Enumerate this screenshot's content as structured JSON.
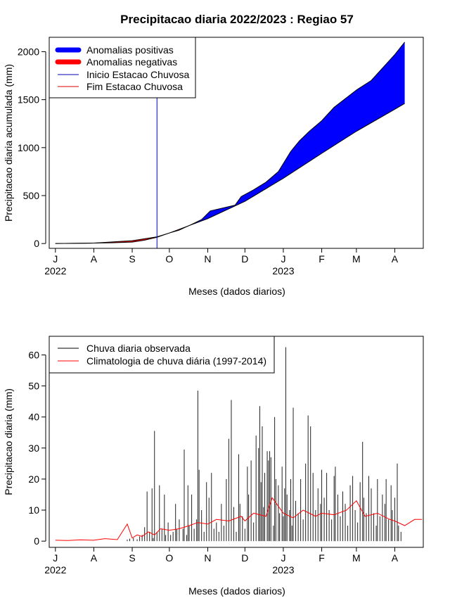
{
  "title": "Precipitacao diaria 2022/2023 : Regiao 57",
  "top_chart": {
    "ylabel": "Precipitacao diaria acumulada (mm)",
    "xlabel": "Meses (dados diarios)",
    "y_ticks": [
      "0",
      "500",
      "1000",
      "1500",
      "2000"
    ],
    "legend": [
      {
        "label": "Anomalias positivas",
        "color": "#0000ff"
      },
      {
        "label": "Anomalias negativas",
        "color": "#ff0000"
      },
      {
        "label": "Inicio Estacao Chuvosa",
        "color": "#0000bb"
      },
      {
        "label": "Fim Estacao Chuvosa",
        "color": "#dd0000"
      }
    ]
  },
  "bottom_chart": {
    "ylabel": "Precipitacao diaria (mm)",
    "xlabel": "Meses (dados diarios)",
    "y_ticks": [
      "0",
      "10",
      "20",
      "30",
      "40",
      "50",
      "60"
    ],
    "legend": [
      {
        "label": "Chuva diaria observada",
        "color": "#000000"
      },
      {
        "label": "Climatologia de chuva diária (1997-2014)",
        "color": "#ff0000"
      }
    ]
  },
  "x_months": [
    "J",
    "A",
    "S",
    "O",
    "N",
    "D",
    "J",
    "F",
    "M",
    "A"
  ],
  "x_years": [
    "2022",
    "2023"
  ],
  "chart_data": [
    {
      "type": "area",
      "title": "Precipitacao diaria 2022/2023 : Regiao 57",
      "xlabel": "Meses (dados diarios)",
      "ylabel": "Precipitacao diaria acumulada (mm)",
      "x_unit": "days since 2022-07-01",
      "xlim": [
        -5,
        297
      ],
      "ylim": [
        -50,
        2150
      ],
      "rainy_season_start_day": 82,
      "climatology_cumulative": {
        "day": [
          0,
          31,
          62,
          82,
          92,
          123,
          153,
          184,
          215,
          243,
          274,
          282
        ],
        "value": [
          0,
          5,
          30,
          70,
          110,
          260,
          440,
          680,
          940,
          1170,
          1400,
          1460
        ]
      },
      "observed_cumulative": {
        "day": [
          0,
          31,
          45,
          62,
          72,
          82,
          92,
          100,
          110,
          118,
          125,
          135,
          145,
          150,
          160,
          170,
          180,
          190,
          197,
          205,
          215,
          225,
          243,
          255,
          274,
          282
        ],
        "value": [
          0,
          5,
          8,
          15,
          35,
          65,
          110,
          140,
          200,
          250,
          340,
          370,
          400,
          490,
          560,
          640,
          750,
          960,
          1070,
          1170,
          1280,
          1420,
          1600,
          1700,
          1970,
          2100
        ]
      }
    },
    {
      "type": "bar",
      "xlabel": "Meses (dados diarios)",
      "ylabel": "Precipitacao diaria (mm)",
      "x_unit": "days since 2022-07-01",
      "xlim": [
        -5,
        297
      ],
      "ylim": [
        -2,
        66
      ],
      "observed_daily": [
        [
          58,
          0.5
        ],
        [
          60,
          0.8
        ],
        [
          63,
          1.0
        ],
        [
          66,
          0.6
        ],
        [
          68,
          1.5
        ],
        [
          70,
          2.0
        ],
        [
          72,
          4.5
        ],
        [
          74,
          16
        ],
        [
          76,
          3
        ],
        [
          78,
          17
        ],
        [
          79,
          1
        ],
        [
          80,
          35.5
        ],
        [
          82,
          3
        ],
        [
          84,
          18
        ],
        [
          86,
          4
        ],
        [
          88,
          15
        ],
        [
          89,
          2
        ],
        [
          91,
          6
        ],
        [
          93,
          2
        ],
        [
          95,
          3
        ],
        [
          97,
          12
        ],
        [
          98,
          4
        ],
        [
          100,
          7
        ],
        [
          103,
          4
        ],
        [
          104,
          29.5
        ],
        [
          106,
          2
        ],
        [
          107,
          18
        ],
        [
          108,
          5
        ],
        [
          110,
          15
        ],
        [
          112,
          4
        ],
        [
          114,
          7
        ],
        [
          115,
          48.5
        ],
        [
          116,
          23
        ],
        [
          118,
          10
        ],
        [
          120,
          3
        ],
        [
          122,
          19
        ],
        [
          124,
          14
        ],
        [
          126,
          22
        ],
        [
          128,
          4
        ],
        [
          130,
          6
        ],
        [
          132,
          3
        ],
        [
          134,
          12
        ],
        [
          136,
          5
        ],
        [
          138,
          20
        ],
        [
          140,
          33
        ],
        [
          142,
          45.5
        ],
        [
          144,
          11
        ],
        [
          146,
          3
        ],
        [
          148,
          28
        ],
        [
          149,
          12
        ],
        [
          151,
          8
        ],
        [
          153,
          4
        ],
        [
          155,
          24
        ],
        [
          156,
          15
        ],
        [
          158,
          26
        ],
        [
          160,
          6
        ],
        [
          162,
          34
        ],
        [
          164,
          30
        ],
        [
          165,
          43.5
        ],
        [
          166,
          19
        ],
        [
          167,
          37
        ],
        [
          168,
          11
        ],
        [
          169,
          22
        ],
        [
          171,
          29
        ],
        [
          172,
          26
        ],
        [
          173,
          29
        ],
        [
          174,
          27
        ],
        [
          176,
          5
        ],
        [
          177,
          40
        ],
        [
          178,
          20
        ],
        [
          180,
          18
        ],
        [
          181,
          9
        ],
        [
          183,
          24
        ],
        [
          184,
          8
        ],
        [
          185,
          17
        ],
        [
          186,
          62.5
        ],
        [
          187,
          15
        ],
        [
          189,
          10
        ],
        [
          190,
          20
        ],
        [
          191,
          5
        ],
        [
          192,
          43
        ],
        [
          194,
          13
        ],
        [
          196,
          9
        ],
        [
          198,
          20
        ],
        [
          200,
          7
        ],
        [
          202,
          25
        ],
        [
          204,
          40.5
        ],
        [
          206,
          37
        ],
        [
          208,
          22
        ],
        [
          210,
          10
        ],
        [
          212,
          17
        ],
        [
          214,
          12
        ],
        [
          215,
          23
        ],
        [
          217,
          14
        ],
        [
          219,
          22
        ],
        [
          221,
          10
        ],
        [
          223,
          7
        ],
        [
          225,
          21
        ],
        [
          226,
          24
        ],
        [
          228,
          15
        ],
        [
          230,
          8
        ],
        [
          232,
          16
        ],
        [
          234,
          12
        ],
        [
          236,
          5
        ],
        [
          238,
          18
        ],
        [
          240,
          21
        ],
        [
          242,
          10
        ],
        [
          244,
          6
        ],
        [
          246,
          19
        ],
        [
          248,
          32
        ],
        [
          249,
          14
        ],
        [
          251,
          9
        ],
        [
          253,
          21
        ],
        [
          255,
          17
        ],
        [
          257,
          9
        ],
        [
          259,
          5
        ],
        [
          260,
          20
        ],
        [
          262,
          8
        ],
        [
          264,
          15
        ],
        [
          266,
          12
        ],
        [
          267,
          20
        ],
        [
          269,
          7
        ],
        [
          271,
          18
        ],
        [
          272,
          10
        ],
        [
          274,
          14
        ],
        [
          276,
          25
        ],
        [
          277,
          5
        ],
        [
          279,
          3
        ]
      ],
      "climatology_daily": {
        "day": [
          0,
          10,
          20,
          31,
          40,
          50,
          58,
          62,
          66,
          70,
          75,
          80,
          85,
          92,
          100,
          108,
          115,
          123,
          130,
          140,
          150,
          153,
          160,
          170,
          175,
          184,
          192,
          200,
          210,
          215,
          225,
          235,
          243,
          250,
          260,
          270,
          274,
          282,
          290,
          296
        ],
        "value": [
          0.3,
          0.2,
          0.4,
          0.3,
          0.8,
          0.5,
          5.5,
          1.0,
          2.0,
          1.5,
          3.0,
          2.0,
          4.0,
          3.5,
          4.0,
          5.0,
          6.0,
          5.5,
          7.0,
          6.5,
          8.0,
          6.5,
          9.0,
          8.0,
          14.0,
          9.0,
          7.5,
          10.0,
          8.0,
          9.0,
          8.5,
          10.0,
          13.0,
          8.0,
          9.0,
          7.0,
          6.5,
          5.0,
          7.0,
          7.0
        ]
      }
    }
  ]
}
